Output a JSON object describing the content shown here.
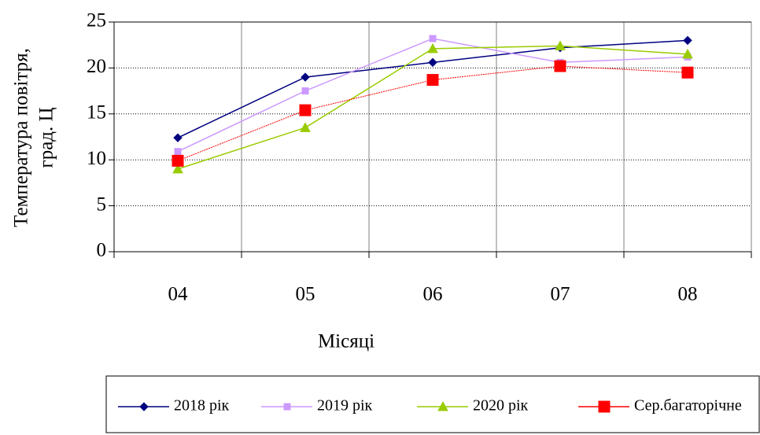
{
  "chart_data": {
    "type": "line",
    "y_label": [
      "Температура повітря,",
      "град. Ц"
    ],
    "x_label": "Місяці",
    "categories": [
      "04",
      "05",
      "06",
      "07",
      "08"
    ],
    "series": [
      {
        "name": "2018 рік",
        "color": "#000080",
        "marker": "diamond",
        "values": [
          12.4,
          19.0,
          20.6,
          22.2,
          23.0
        ]
      },
      {
        "name": "2019 рік",
        "color": "#cc99ff",
        "marker": "square",
        "values": [
          10.9,
          17.5,
          23.2,
          20.6,
          21.2
        ]
      },
      {
        "name": "2020 рік",
        "color": "#99cc00",
        "marker": "triangle",
        "values": [
          9.0,
          13.5,
          22.1,
          22.4,
          21.5
        ]
      },
      {
        "name": "Сер.багаторічне",
        "color": "#ff0000",
        "marker": "big-square",
        "values": [
          9.9,
          15.4,
          18.7,
          20.2,
          19.5
        ]
      }
    ],
    "ylim": [
      0,
      25
    ],
    "yticks": [
      0,
      5,
      10,
      15,
      20,
      25
    ],
    "grid": true,
    "legend": "bottom"
  }
}
